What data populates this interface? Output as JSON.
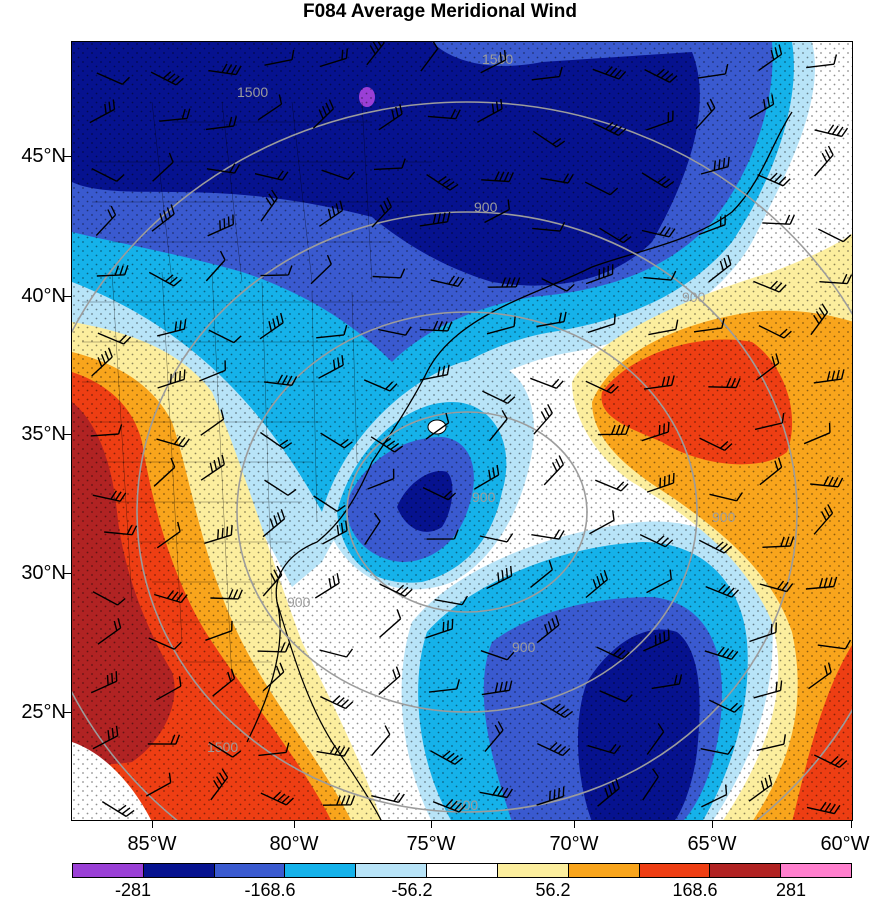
{
  "title": "F084 Average Meridional Wind",
  "lat_axis": [
    "45°N",
    "40°N",
    "35°N",
    "30°N",
    "25°N"
  ],
  "lon_axis": [
    "85°W",
    "80°W",
    "75°W",
    "70°W",
    "65°W",
    "60°W"
  ],
  "contour_labels": [
    "1500",
    "1500",
    "900",
    "900",
    "900",
    "900",
    "900",
    "1500",
    "1500",
    "900"
  ],
  "colorbar": {
    "colors": [
      "#9a3fd6",
      "#06128f",
      "#3a5ad0",
      "#15b2ea",
      "#b8e4f8",
      "#ffffff",
      "#fcee9e",
      "#f9a51c",
      "#ee3e13",
      "#b12323",
      "#ff7fcd"
    ],
    "labels": [
      "-281",
      "-168.6",
      "-56.2",
      "56.2",
      "168.6",
      "281"
    ]
  }
}
